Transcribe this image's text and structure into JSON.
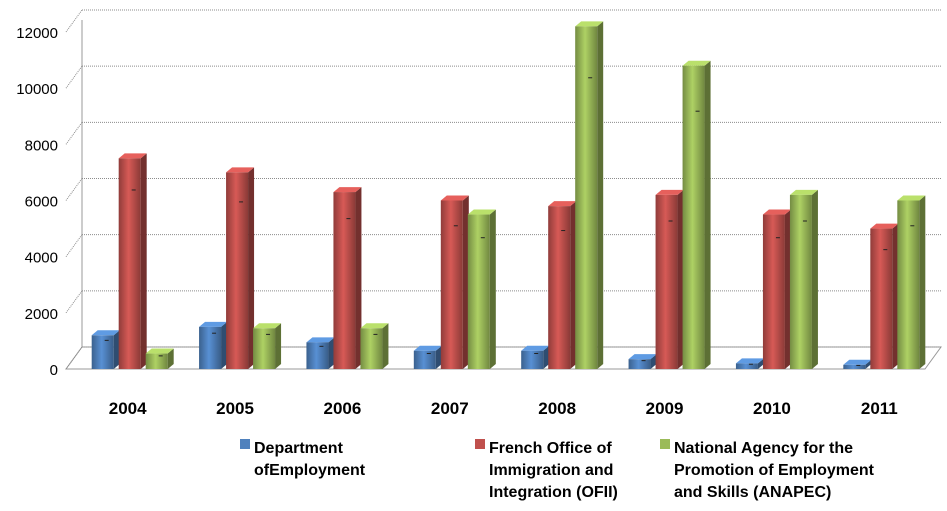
{
  "chart_data": {
    "type": "bar",
    "categories": [
      "2004",
      "2005",
      "2006",
      "2007",
      "2008",
      "2009",
      "2010",
      "2011"
    ],
    "series": [
      {
        "name": "Department\nofEmployment",
        "color": "#4f81bd",
        "values": [
          1200,
          1500,
          950,
          650,
          650,
          350,
          200,
          150
        ]
      },
      {
        "name": "French Office of\nImmigration and\nIntegration (OFII)",
        "color": "#c0504d",
        "values": [
          7500,
          7000,
          6300,
          6000,
          5800,
          6200,
          5500,
          5000
        ]
      },
      {
        "name": "National Agency for the\nPromotion of Employment\nand Skills (ANAPEC)",
        "color": "#9bbb59",
        "values": [
          550,
          1450,
          1450,
          5500,
          12200,
          10800,
          6200,
          6000
        ]
      }
    ],
    "yticks": [
      "0",
      "2000",
      "4000",
      "6000",
      "8000",
      "10000",
      "12000"
    ],
    "ylim": [
      0,
      12000
    ],
    "grid": true,
    "legend": "bottom"
  }
}
